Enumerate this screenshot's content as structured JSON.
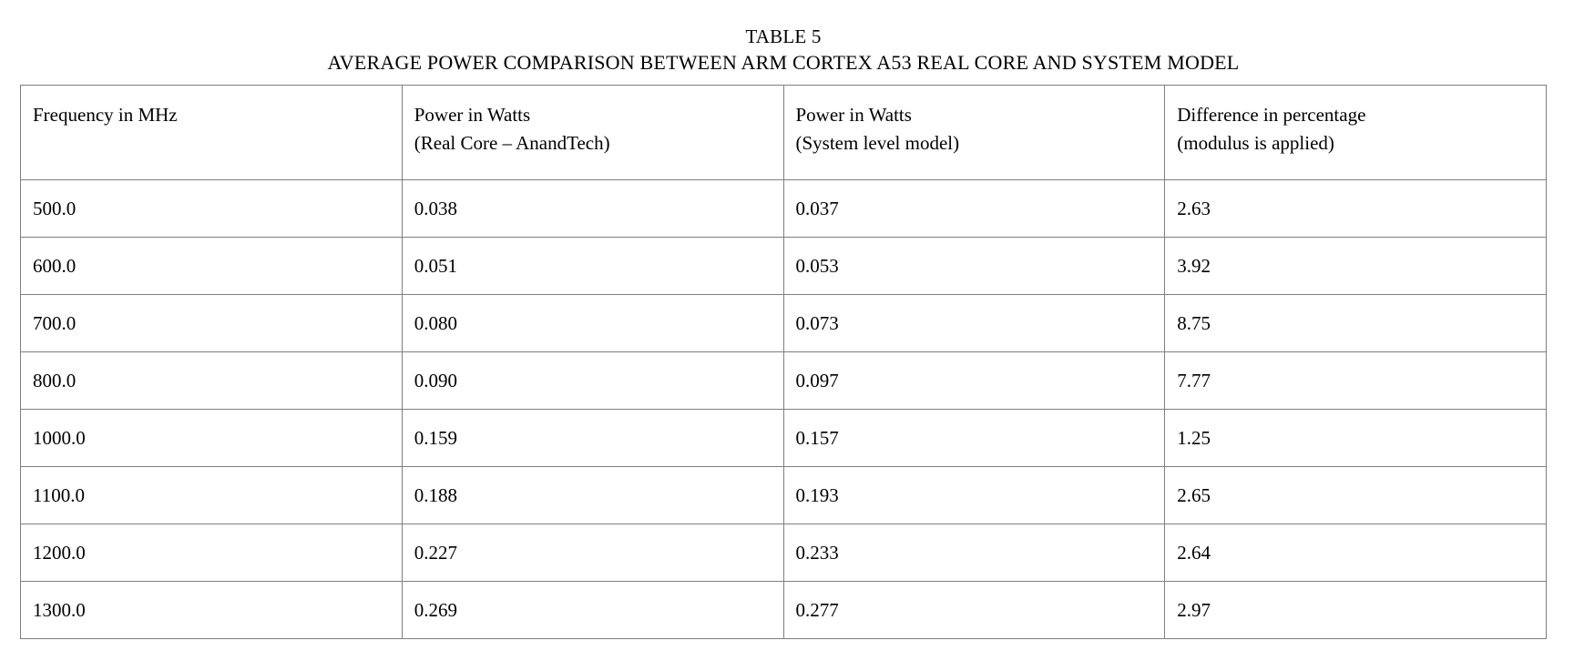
{
  "title": "TABLE 5",
  "caption": "AVERAGE POWER COMPARISON BETWEEN ARM CORTEX A53 REAL CORE AND SYSTEM MODEL",
  "table": {
    "columns": [
      {
        "line1": "Frequency in MHz",
        "line2": ""
      },
      {
        "line1": "Power in Watts",
        "line2": "(Real Core – AnandTech)"
      },
      {
        "line1": "Power in Watts",
        "line2": "(System level model)"
      },
      {
        "line1": "Difference in percentage",
        "line2": "(modulus is applied)"
      }
    ],
    "rows": [
      [
        "500.0",
        "0.038",
        "0.037",
        "2.63"
      ],
      [
        "600.0",
        "0.051",
        "0.053",
        "3.92"
      ],
      [
        "700.0",
        "0.080",
        "0.073",
        "8.75"
      ],
      [
        "800.0",
        "0.090",
        "0.097",
        "7.77"
      ],
      [
        "1000.0",
        "0.159",
        "0.157",
        "1.25"
      ],
      [
        "1100.0",
        "0.188",
        "0.193",
        "2.65"
      ],
      [
        "1200.0",
        "0.227",
        "0.233",
        "2.64"
      ],
      [
        "1300.0",
        "0.269",
        "0.277",
        "2.97"
      ]
    ]
  },
  "chart_data": {
    "type": "table",
    "title": "TABLE 5",
    "subtitle": "AVERAGE POWER COMPARISON BETWEEN ARM CORTEX A53 REAL CORE AND SYSTEM MODEL",
    "columns": [
      "Frequency in MHz",
      "Power in Watts (Real Core – AnandTech)",
      "Power in Watts (System level model)",
      "Difference in percentage (modulus is applied)"
    ],
    "rows": [
      [
        500.0,
        0.038,
        0.037,
        2.63
      ],
      [
        600.0,
        0.051,
        0.053,
        3.92
      ],
      [
        700.0,
        0.08,
        0.073,
        8.75
      ],
      [
        800.0,
        0.09,
        0.097,
        7.77
      ],
      [
        1000.0,
        0.159,
        0.157,
        1.25
      ],
      [
        1100.0,
        0.188,
        0.193,
        2.65
      ],
      [
        1200.0,
        0.227,
        0.233,
        2.64
      ],
      [
        1300.0,
        0.269,
        0.277,
        2.97
      ]
    ],
    "colors": {
      "text": "#000000",
      "border": "#7f7f7f",
      "background": "#ffffff"
    }
  }
}
